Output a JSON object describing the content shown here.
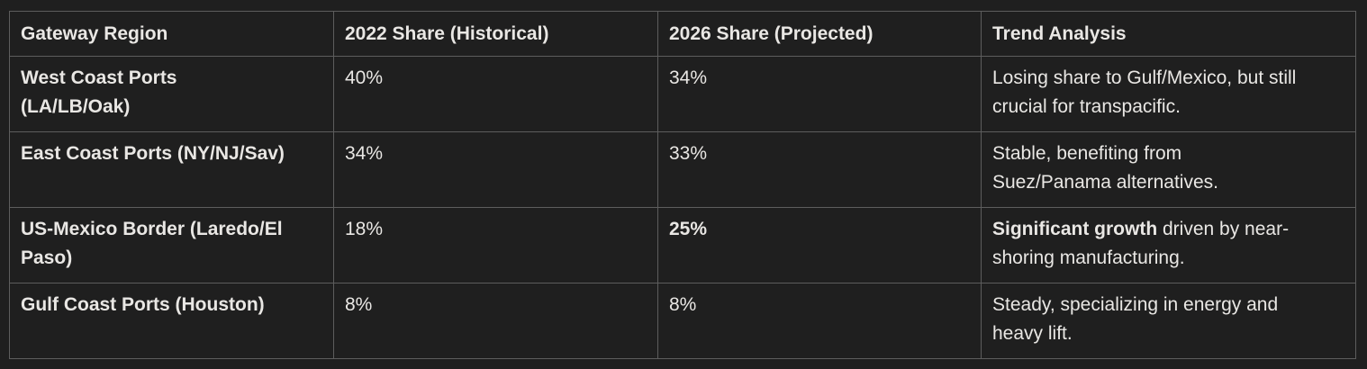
{
  "colors": {
    "background": "#1f1f1f",
    "border": "#5d5d5d",
    "text": "#e9e7e4"
  },
  "table": {
    "headers": [
      "Gateway Region",
      "2022 Share (Historical)",
      "2026 Share (Projected)",
      "Trend Analysis"
    ],
    "rows": [
      {
        "region": "West Coast Ports (LA/LB/Oak)",
        "share_2022": "40%",
        "share_2026": "34%",
        "trend_strong": "",
        "trend": "Losing share to Gulf/Mexico, but still crucial for transpacific."
      },
      {
        "region": "East Coast Ports (NY/NJ/Sav)",
        "share_2022": "34%",
        "share_2026": "33%",
        "trend_strong": "",
        "trend": "Stable, benefiting from Suez/Panama alternatives."
      },
      {
        "region": "US-Mexico Border (Laredo/El Paso)",
        "share_2022": "18%",
        "share_2026": "25%",
        "trend_strong": "Significant growth",
        "trend": " driven by near-shoring manufacturing."
      },
      {
        "region": "Gulf Coast Ports (Houston)",
        "share_2022": "8%",
        "share_2026": "8%",
        "trend_strong": "",
        "trend": "Steady, specializing in energy and heavy lift."
      }
    ]
  }
}
